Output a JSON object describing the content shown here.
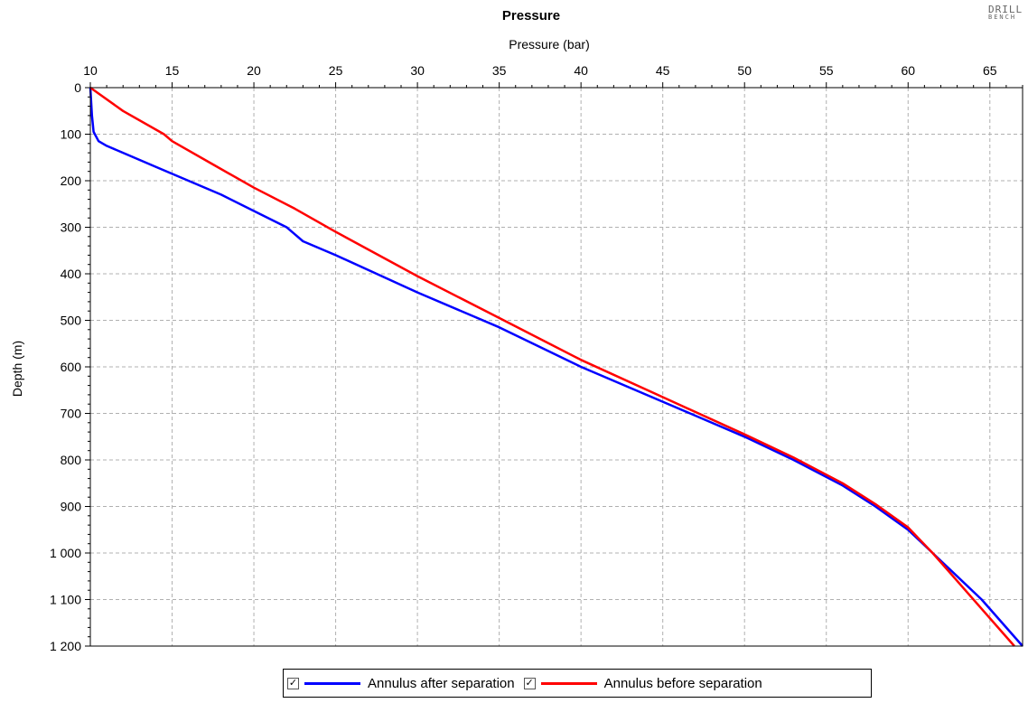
{
  "logo": {
    "line1": "DRILL",
    "line2": "BENCH"
  },
  "chart_data": {
    "type": "line",
    "title": "Pressure",
    "xlabel": "Pressure (bar)",
    "ylabel": "Depth (m)",
    "x_axis_position": "top",
    "y_inverted": true,
    "xlim": [
      10,
      67
    ],
    "ylim": [
      0,
      1200
    ],
    "x_ticks": [
      10,
      15,
      20,
      25,
      30,
      35,
      40,
      45,
      50,
      55,
      60,
      65
    ],
    "x_tick_labels": [
      "10",
      "15",
      "20",
      "25",
      "30",
      "35",
      "40",
      "45",
      "50",
      "55",
      "60",
      "65"
    ],
    "y_ticks": [
      0,
      100,
      200,
      300,
      400,
      500,
      600,
      700,
      800,
      900,
      1000,
      1100,
      1200
    ],
    "y_tick_labels": [
      "0",
      "100",
      "200",
      "300",
      "400",
      "500",
      "600",
      "700",
      "800",
      "900",
      "1 000",
      "1 100",
      "1 200"
    ],
    "grid": true,
    "legend_position": "bottom",
    "series": [
      {
        "name": "Annulus after separation",
        "color": "#0000ff",
        "checked": true,
        "points": [
          [
            10.0,
            0
          ],
          [
            10.1,
            60
          ],
          [
            10.2,
            95
          ],
          [
            10.5,
            115
          ],
          [
            11.0,
            125
          ],
          [
            12.0,
            140
          ],
          [
            14.0,
            170
          ],
          [
            16.0,
            200
          ],
          [
            18.0,
            230
          ],
          [
            20.0,
            265
          ],
          [
            22.0,
            300
          ],
          [
            22.5,
            315
          ],
          [
            23.0,
            330
          ],
          [
            25.0,
            360
          ],
          [
            30.0,
            440
          ],
          [
            35.0,
            515
          ],
          [
            40.0,
            600
          ],
          [
            45.0,
            675
          ],
          [
            50.0,
            750
          ],
          [
            53.0,
            800
          ],
          [
            56.0,
            855
          ],
          [
            58.0,
            900
          ],
          [
            60.0,
            950
          ],
          [
            61.5,
            1000
          ],
          [
            63.0,
            1050
          ],
          [
            64.5,
            1100
          ],
          [
            67.0,
            1200
          ]
        ]
      },
      {
        "name": "Annulus before separation",
        "color": "#ff0000",
        "checked": true,
        "points": [
          [
            10.0,
            0
          ],
          [
            12.0,
            50
          ],
          [
            14.5,
            100
          ],
          [
            15.0,
            115
          ],
          [
            17.5,
            165
          ],
          [
            20.0,
            215
          ],
          [
            22.5,
            260
          ],
          [
            25.0,
            310
          ],
          [
            30.0,
            405
          ],
          [
            35.0,
            495
          ],
          [
            40.0,
            585
          ],
          [
            45.0,
            665
          ],
          [
            50.0,
            745
          ],
          [
            53.0,
            795
          ],
          [
            56.0,
            850
          ],
          [
            58.0,
            895
          ],
          [
            60.0,
            945
          ],
          [
            61.5,
            1000
          ],
          [
            63.0,
            1060
          ],
          [
            64.5,
            1120
          ],
          [
            66.5,
            1200
          ]
        ]
      }
    ]
  }
}
